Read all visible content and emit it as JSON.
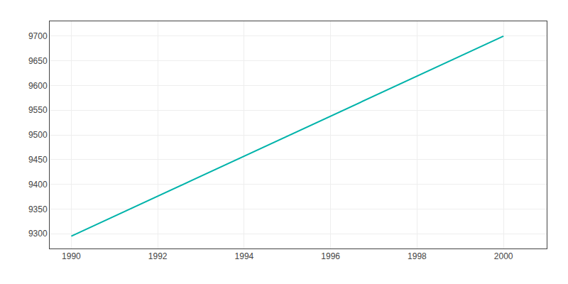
{
  "chart_data": {
    "type": "line",
    "x": [
      1990,
      2000
    ],
    "values": [
      9295,
      9700
    ],
    "color": "#00b3aa",
    "xlim": [
      1989.5,
      2001.0
    ],
    "ylim": [
      9270,
      9730
    ],
    "xticks": [
      1990,
      1992,
      1994,
      1996,
      1998,
      2000
    ],
    "yticks": [
      9300,
      9350,
      9400,
      9450,
      9500,
      9550,
      9600,
      9650,
      9700
    ],
    "grid": true
  }
}
